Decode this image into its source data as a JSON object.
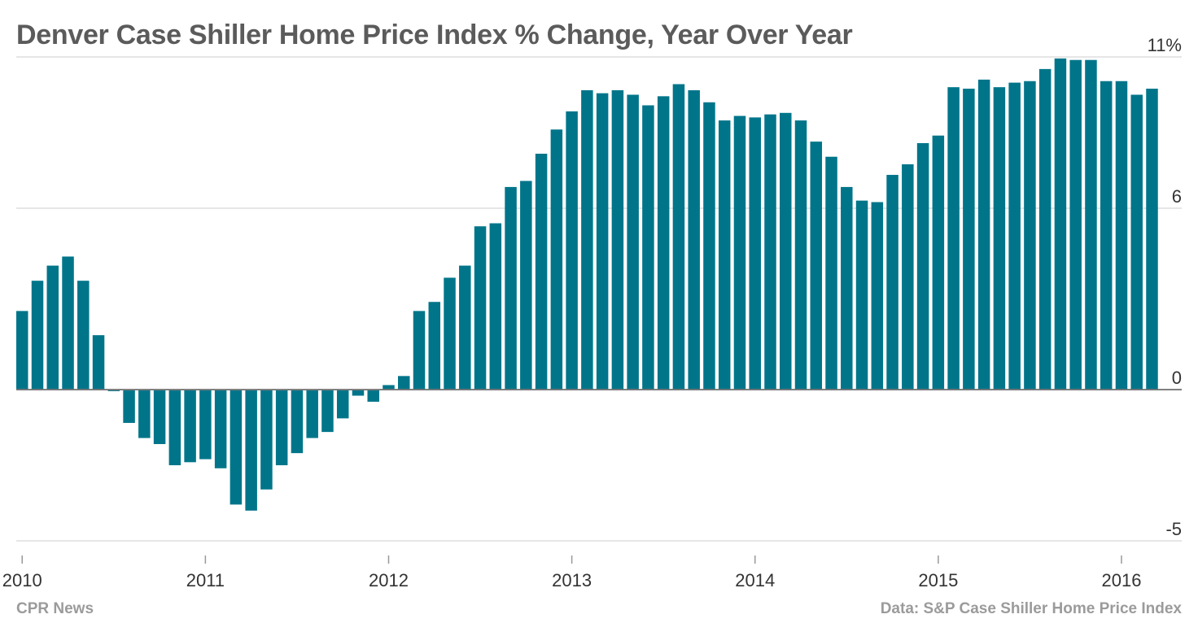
{
  "chart_data": {
    "type": "bar",
    "title": "Denver Case Shiller Home Price Index % Change, Year Over Year",
    "xlabel": "",
    "ylabel": "",
    "y_axis_position": "right",
    "y_ticks": [
      11,
      6,
      0,
      -5
    ],
    "y_tick_labels": [
      "11%",
      "6",
      "0",
      "-5"
    ],
    "ylim": [
      -5,
      11
    ],
    "x_ticks": [
      "2010",
      "2011",
      "2012",
      "2013",
      "2014",
      "2015",
      "2016"
    ],
    "grid": true,
    "color": "#00758a",
    "categories": [
      "2010-01",
      "2010-02",
      "2010-03",
      "2010-04",
      "2010-05",
      "2010-06",
      "2010-07",
      "2010-08",
      "2010-09",
      "2010-10",
      "2010-11",
      "2010-12",
      "2011-01",
      "2011-02",
      "2011-03",
      "2011-04",
      "2011-05",
      "2011-06",
      "2011-07",
      "2011-08",
      "2011-09",
      "2011-10",
      "2011-11",
      "2011-12",
      "2012-01",
      "2012-02",
      "2012-03",
      "2012-04",
      "2012-05",
      "2012-06",
      "2012-07",
      "2012-08",
      "2012-09",
      "2012-10",
      "2012-11",
      "2012-12",
      "2013-01",
      "2013-02",
      "2013-03",
      "2013-04",
      "2013-05",
      "2013-06",
      "2013-07",
      "2013-08",
      "2013-09",
      "2013-10",
      "2013-11",
      "2013-12",
      "2014-01",
      "2014-02",
      "2014-03",
      "2014-04",
      "2014-05",
      "2014-06",
      "2014-07",
      "2014-08",
      "2014-09",
      "2014-10",
      "2014-11",
      "2014-12",
      "2015-01",
      "2015-02",
      "2015-03",
      "2015-04",
      "2015-05",
      "2015-06",
      "2015-07",
      "2015-08",
      "2015-09",
      "2015-10",
      "2015-11",
      "2015-12",
      "2016-01",
      "2016-02",
      "2016-03"
    ],
    "values": [
      2.6,
      3.6,
      4.1,
      4.4,
      3.6,
      1.8,
      -0.05,
      -1.1,
      -1.6,
      -1.8,
      -2.5,
      -2.4,
      -2.3,
      -2.6,
      -3.8,
      -4.0,
      -3.3,
      -2.5,
      -2.1,
      -1.6,
      -1.4,
      -0.95,
      -0.2,
      -0.4,
      0.15,
      0.45,
      2.6,
      2.9,
      3.7,
      4.1,
      5.4,
      5.5,
      6.7,
      6.9,
      7.8,
      8.6,
      9.2,
      9.9,
      9.8,
      9.9,
      9.75,
      9.4,
      9.7,
      10.1,
      9.9,
      9.5,
      8.9,
      9.05,
      9.0,
      9.1,
      9.15,
      8.9,
      8.2,
      7.7,
      6.7,
      6.25,
      6.2,
      7.1,
      7.45,
      8.15,
      8.4,
      10.0,
      9.95,
      10.25,
      10.0,
      10.15,
      10.2,
      10.6,
      10.95,
      10.9,
      10.9,
      10.2,
      10.2,
      9.75,
      9.95
    ]
  },
  "footer": {
    "credit": "CPR News",
    "source": "Data: S&P Case Shiller Home Price Index"
  }
}
